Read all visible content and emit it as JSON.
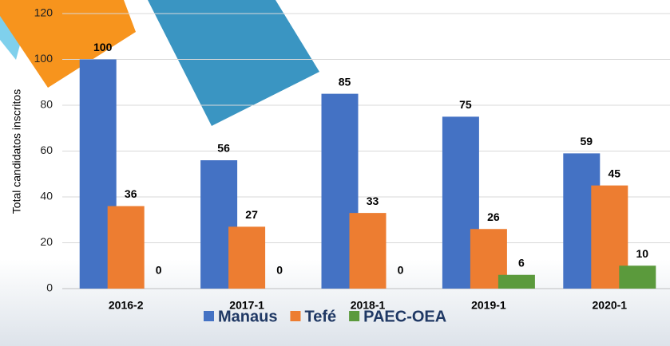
{
  "chart_data": {
    "type": "bar",
    "y_label": "Total candidatos inscritos",
    "categories": [
      "2016-2",
      "2017-1",
      "2018-1",
      "2019-1",
      "2020-1"
    ],
    "series": [
      {
        "name": "Manaus",
        "color": "#4472c4",
        "values": [
          100,
          56,
          85,
          75,
          59
        ]
      },
      {
        "name": "Tefé",
        "color": "#ed7d31",
        "values": [
          36,
          27,
          33,
          26,
          45
        ]
      },
      {
        "name": "PAEC-OEA",
        "color": "#5b9a3c",
        "values": [
          0,
          0,
          0,
          6,
          10
        ]
      }
    ],
    "ylim": [
      0,
      120
    ],
    "yticks": [
      0,
      20,
      40,
      60,
      80,
      100,
      120
    ],
    "grid": true,
    "legend": "bottom"
  }
}
